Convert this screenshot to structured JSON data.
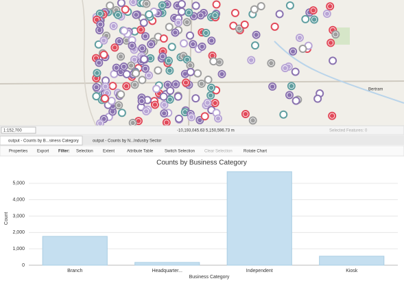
{
  "map": {
    "place_label": "Bertram",
    "scale": "1:152,700",
    "coordinates": "-10,193,045.63 5,150,596.73 m",
    "selected_features": "Selected Features: 0"
  },
  "tabs": [
    "output - Counts by B...siness Category",
    "output - Counts by N...Industry Sector"
  ],
  "toolbar": {
    "properties": "Properties",
    "export": "Export",
    "filter": "Filter:",
    "selection": "Selection",
    "extent": "Extent",
    "attribute_table": "Attribute Table",
    "switch_selection": "Switch Selection",
    "clear_selection": "Clear Selection",
    "rotate_chart": "Rotate Chart"
  },
  "chart_data": {
    "type": "bar",
    "title": "Counts by Business Category",
    "x_label": "Business Category",
    "y_label": "Count",
    "categories": [
      "Branch",
      "Headquarter...",
      "Independent",
      "Kiosk"
    ],
    "values": [
      1760,
      170,
      5710,
      550
    ],
    "color": "#c5dff0",
    "ylim": [
      0,
      6000
    ],
    "yticks": [
      0,
      {
        "value": 1000,
        "label": "1,000"
      },
      {
        "value": 2000,
        "label": "2,000"
      },
      {
        "value": 3000,
        "label": "3,000"
      },
      {
        "value": 4000,
        "label": "4,000"
      },
      {
        "value": 5000,
        "label": "5,000"
      }
    ],
    "grid": true
  }
}
